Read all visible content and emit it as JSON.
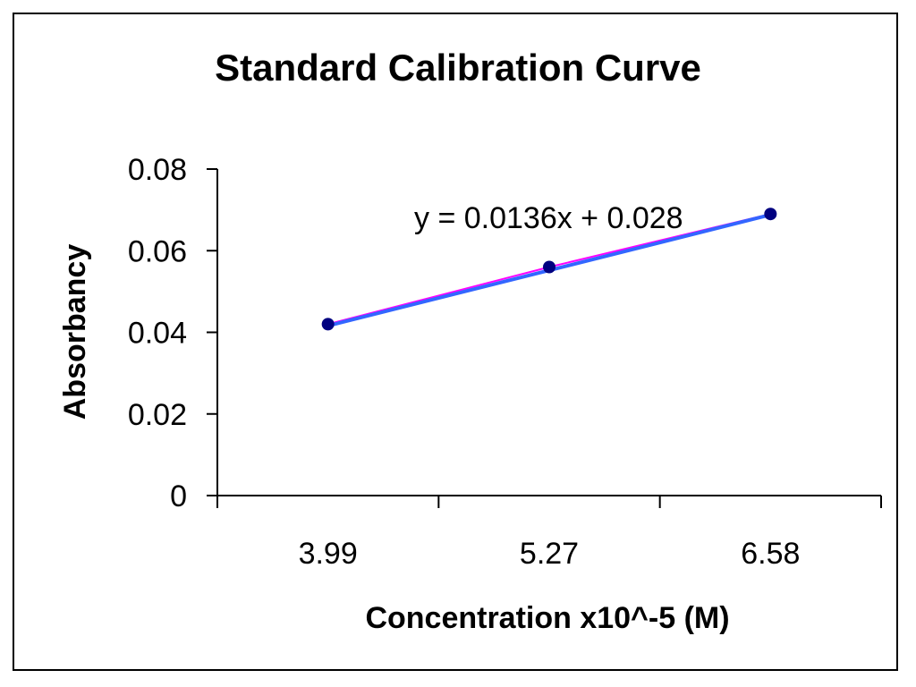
{
  "chart_data": {
    "type": "scatter",
    "title": "Standard Calibration Curve",
    "xlabel": "Concentration x10^-5 (M)",
    "ylabel": "Absorbancy",
    "categories": [
      "3.99",
      "5.27",
      "6.58"
    ],
    "series": [
      {
        "values": [
          0.042,
          0.056,
          0.069
        ]
      }
    ],
    "trendline": {
      "equation": "y = 0.0136x +  0.028",
      "slope": 0.0136,
      "intercept": 0.028
    },
    "ylim": [
      0,
      0.08
    ],
    "yticks": [
      "0",
      "0.02",
      "0.04",
      "0.06",
      "0.08"
    ],
    "grid": false,
    "legend": false,
    "colors": {
      "marker": "#000080",
      "trendline": "#3366ff",
      "series_line": "#ff00ff",
      "axis": "#000000"
    }
  }
}
